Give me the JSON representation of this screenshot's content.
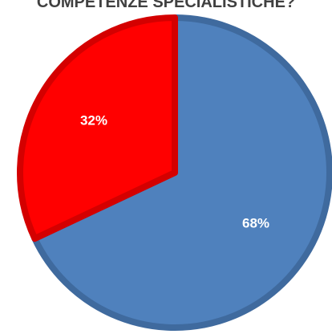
{
  "chart_data": {
    "type": "pie",
    "title": "COMPETENZE SPECIALISTICHE?",
    "categories": [
      "",
      ""
    ],
    "values": [
      68,
      32
    ],
    "labels": [
      "68%",
      "32%"
    ],
    "colors": [
      "#4f81bd",
      "#ff0000"
    ],
    "border_colors": [
      "#3f6a9e",
      "#d40000"
    ],
    "start": "12 o'clock",
    "direction": "clockwise",
    "legend": "none"
  }
}
